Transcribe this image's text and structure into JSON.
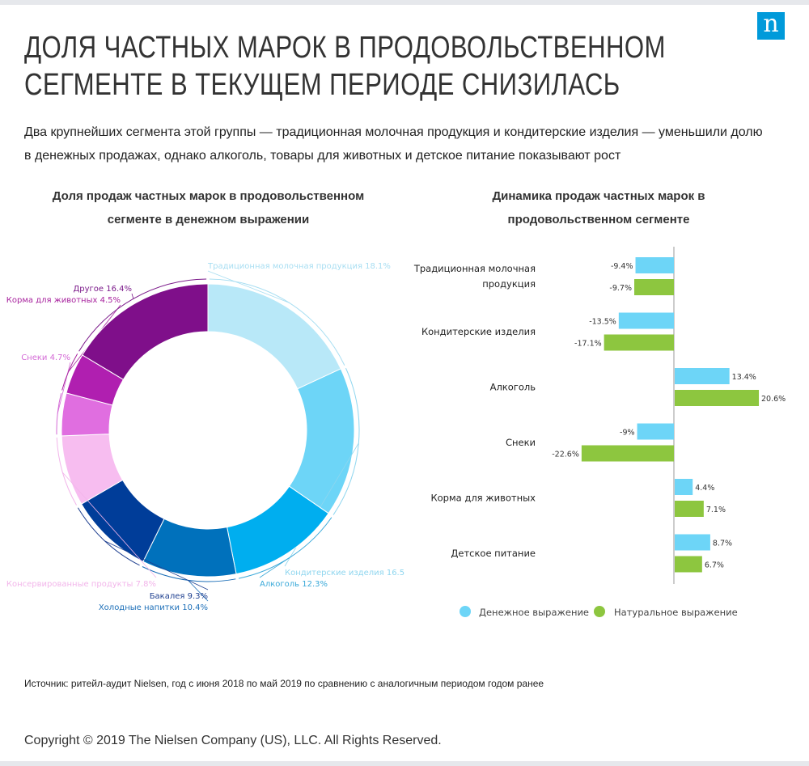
{
  "logo": "n",
  "title_line1": "ДОЛЯ ЧАСТНЫХ МАРОК В ПРОДОВОЛЬСТВЕННОМ",
  "title_line2": "СЕГМЕНТЕ В ТЕКУЩЕМ ПЕРИОДЕ СНИЗИЛАСЬ",
  "subtitle_line1": "Два крупнейших сегмента этой группы — традиционная молочная продукция и кондитерские изделия — уменьшили долю",
  "subtitle_line2": "в денежных продажах, однако алкоголь, товары для животных и детское питание показывают рост",
  "source": "Источник: ритейл-аудит Nielsen, год с июня 2018 по май 2019 по сравнению с аналогичным периодом годом ранее",
  "copyright": "Copyright © 2019 The Nielsen Company (US), LLC. All Rights Reserved.",
  "chart_data": [
    {
      "type": "pie",
      "donut": true,
      "title_line1": "Доля продаж частных марок в продовольственном",
      "title_line2": "сегменте в денежном выражении",
      "unit": "%",
      "slices": [
        {
          "label": "Традиционная молочная продукция",
          "value": 18.1,
          "color": "#b8e8f8"
        },
        {
          "label": "Кондитерские изделия",
          "value": 16.5,
          "color": "#6dd5f7"
        },
        {
          "label": "Алкоголь",
          "value": 12.3,
          "color": "#00aeef"
        },
        {
          "label": "Холодные напитки",
          "value": 10.4,
          "color": "#0071bc"
        },
        {
          "label": "Бакалея",
          "value": 9.3,
          "color": "#003d99"
        },
        {
          "label": "Консервированные продукты",
          "value": 7.8,
          "color": "#f7bdf0"
        },
        {
          "label": "Снеки",
          "value": 4.7,
          "color": "#e06ee0"
        },
        {
          "label": "Корма для животных",
          "value": 4.5,
          "color": "#b01fb0"
        },
        {
          "label": "Другое",
          "value": 16.4,
          "color": "#7f0f8a"
        }
      ]
    },
    {
      "type": "bar",
      "orientation": "horizontal",
      "title_line1": "Динамика продаж частных марок в",
      "title_line2": "продовольственном сегменте",
      "unit": "%",
      "categories": [
        [
          "Традиционная молочная",
          "продукция"
        ],
        [
          "Кондитерские изделия"
        ],
        [
          "Алкоголь"
        ],
        [
          "Снеки"
        ],
        [
          "Корма для животных"
        ],
        [
          "Детское питание"
        ]
      ],
      "series": [
        {
          "name": "Денежное выражение",
          "color": "#6dd5f7",
          "values": [
            -9.4,
            -13.5,
            13.4,
            -9,
            4.4,
            8.7
          ]
        },
        {
          "name": "Натуральное выражение",
          "color": "#8dc63f",
          "values": [
            -9.7,
            -17.1,
            20.6,
            -22.6,
            7.1,
            6.7
          ]
        }
      ],
      "legend": "bottom"
    }
  ]
}
